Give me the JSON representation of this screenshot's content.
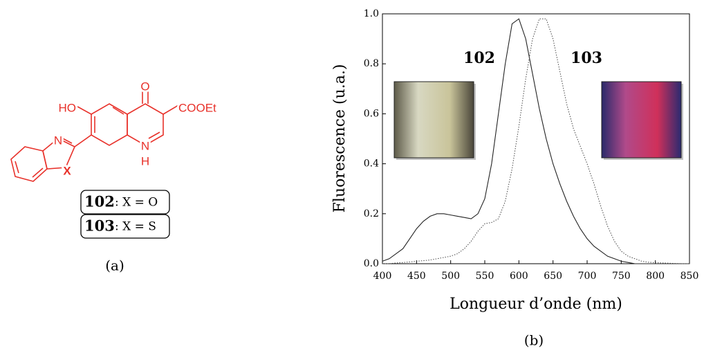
{
  "panel_a": {
    "atoms": [
      "HO",
      "O",
      "COOEt",
      "N",
      "X",
      "N",
      "H"
    ],
    "compounds": [
      {
        "id": "102",
        "desc": ": X = O"
      },
      {
        "id": "103",
        "desc": ": X = S"
      }
    ],
    "caption": "(a)"
  },
  "chart_data": {
    "type": "line",
    "xlabel": "Longueur d’onde (nm)",
    "ylabel": "Fluorescence (u.a.)",
    "annotations": [
      "102",
      "103"
    ],
    "x": [
      400,
      410,
      420,
      430,
      440,
      450,
      460,
      470,
      480,
      490,
      500,
      510,
      520,
      530,
      540,
      550,
      560,
      570,
      580,
      590,
      600,
      610,
      620,
      630,
      640,
      650,
      660,
      670,
      680,
      690,
      700,
      710,
      720,
      730,
      740,
      750,
      760,
      770,
      780,
      790,
      800,
      810,
      820,
      830,
      840,
      850
    ],
    "series": [
      {
        "name": "102",
        "color": "#222222",
        "style": "solid",
        "values": [
          0.01,
          0.02,
          0.04,
          0.06,
          0.1,
          0.14,
          0.17,
          0.19,
          0.2,
          0.2,
          0.195,
          0.19,
          0.185,
          0.18,
          0.2,
          0.26,
          0.4,
          0.6,
          0.8,
          0.96,
          0.98,
          0.9,
          0.76,
          0.62,
          0.5,
          0.4,
          0.32,
          0.25,
          0.19,
          0.14,
          0.1,
          0.07,
          0.05,
          0.03,
          0.02,
          0.01,
          0.005,
          0,
          0,
          0,
          0,
          0,
          0,
          0,
          0,
          0
        ]
      },
      {
        "name": "103",
        "color": "#444444",
        "style": "dotted",
        "values": [
          0,
          0,
          0.003,
          0.005,
          0.007,
          0.01,
          0.012,
          0.015,
          0.02,
          0.025,
          0.03,
          0.04,
          0.06,
          0.09,
          0.13,
          0.16,
          0.165,
          0.18,
          0.25,
          0.38,
          0.55,
          0.74,
          0.9,
          0.98,
          0.98,
          0.9,
          0.77,
          0.64,
          0.54,
          0.47,
          0.4,
          0.32,
          0.23,
          0.15,
          0.09,
          0.05,
          0.03,
          0.02,
          0.01,
          0.006,
          0.004,
          0.003,
          0.002,
          0.001,
          0,
          0
        ]
      }
    ],
    "xlim": [
      400,
      850
    ],
    "xticks": [
      400,
      450,
      500,
      550,
      600,
      650,
      700,
      750,
      800,
      850
    ],
    "ylim": [
      0,
      1
    ],
    "yticks": [
      {
        "value": 0,
        "label": "0.0"
      },
      0.2,
      0.4,
      0.6,
      0.8,
      {
        "value": 1,
        "label": "1.0"
      }
    ]
  },
  "caption_b": "(b)"
}
